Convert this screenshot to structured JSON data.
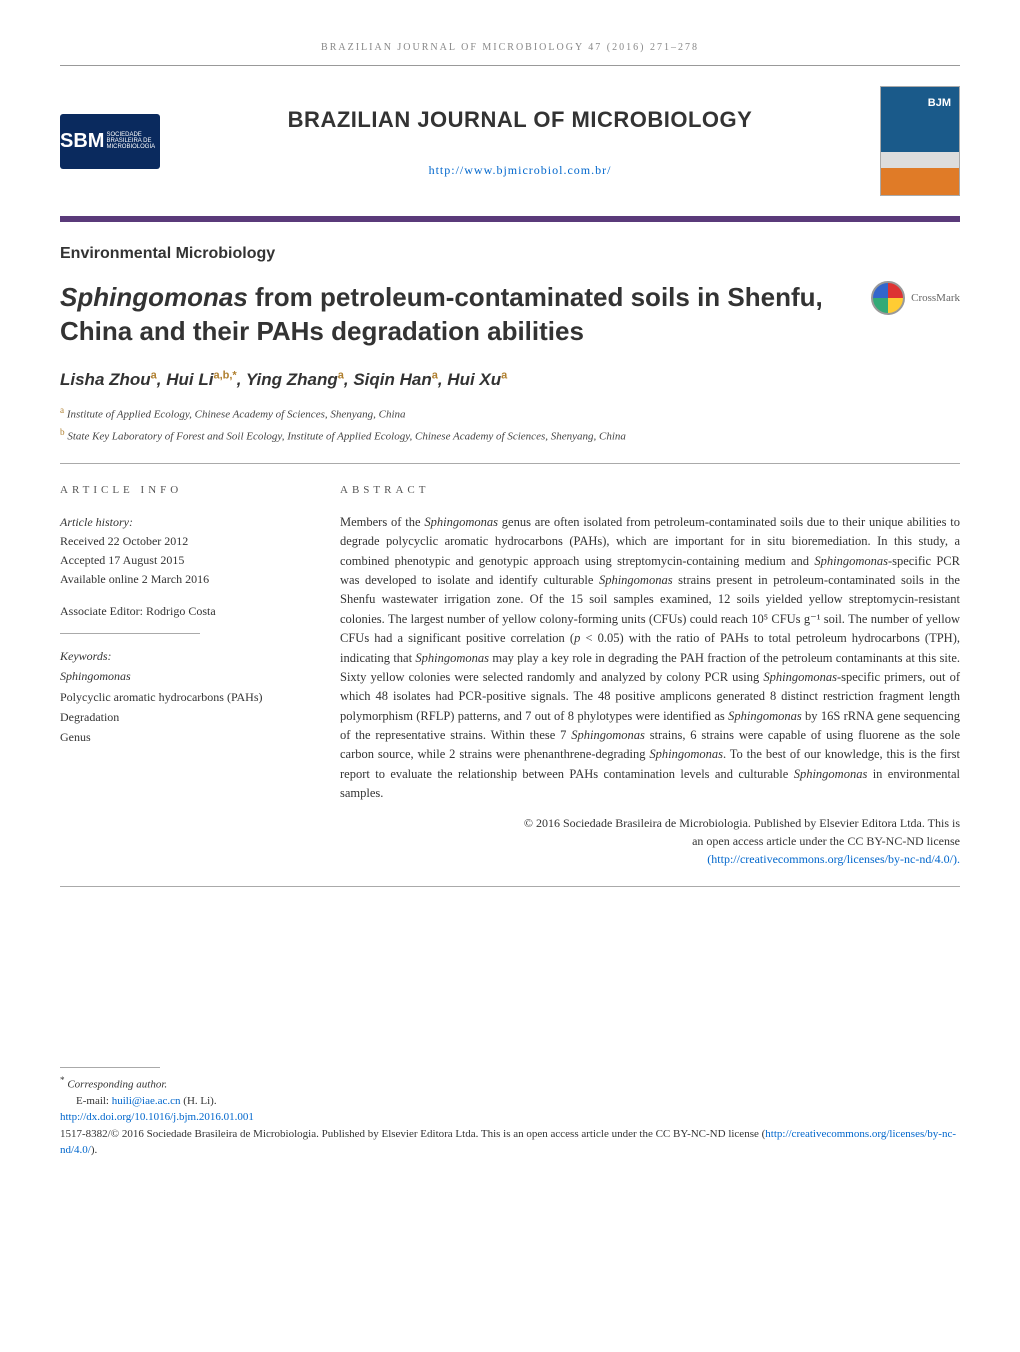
{
  "running_head": "brazilian journal of microbiology 47 (2016) 271–278",
  "masthead": {
    "sbm_main": "SBM",
    "sbm_sub": "SOCIEDADE BRASILEIRA DE MICROBIOLOGIA",
    "journal_name": "BRAZILIAN JOURNAL OF MICROBIOLOGY",
    "journal_url": "http://www.bjmicrobiol.com.br/",
    "cover_text": "BJM"
  },
  "section_label": "Environmental Microbiology",
  "title_plain": "Sphingomonas from petroleum-contaminated soils in Shenfu, China and their PAHs degradation abilities",
  "title_genus": "Sphingomonas",
  "title_rest": " from petroleum-contaminated soils in Shenfu, China and their PAHs degradation abilities",
  "crossmark_label": "CrossMark",
  "authors_html": "Lisha Zhou<sup>a</sup>, Hui Li<sup>a,b,*</sup>, Ying Zhang<sup>a</sup>, Siqin Han<sup>a</sup>, Hui Xu<sup>a</sup>",
  "affiliations": [
    {
      "sup": "a",
      "text": "Institute of Applied Ecology, Chinese Academy of Sciences, Shenyang, China"
    },
    {
      "sup": "b",
      "text": "State Key Laboratory of Forest and Soil Ecology, Institute of Applied Ecology, Chinese Academy of Sciences, Shenyang, China"
    }
  ],
  "article_info": {
    "head": "article info",
    "history_label": "Article history:",
    "received": "Received 22 October 2012",
    "accepted": "Accepted 17 August 2015",
    "online": "Available online 2 March 2016",
    "editor": "Associate Editor: Rodrigo Costa",
    "keywords_label": "Keywords:",
    "keywords": [
      "Sphingomonas",
      "Polycyclic aromatic hydrocarbons (PAHs)",
      "Degradation",
      "Genus"
    ]
  },
  "abstract": {
    "head": "abstract",
    "text": "Members of the Sphingomonas genus are often isolated from petroleum-contaminated soils due to their unique abilities to degrade polycyclic aromatic hydrocarbons (PAHs), which are important for in situ bioremediation. In this study, a combined phenotypic and genotypic approach using streptomycin-containing medium and Sphingomonas-specific PCR was developed to isolate and identify culturable Sphingomonas strains present in petroleum-contaminated soils in the Shenfu wastewater irrigation zone. Of the 15 soil samples examined, 12 soils yielded yellow streptomycin-resistant colonies. The largest number of yellow colony-forming units (CFUs) could reach 10⁵ CFUs g⁻¹ soil. The number of yellow CFUs had a significant positive correlation (p < 0.05) with the ratio of PAHs to total petroleum hydrocarbons (TPH), indicating that Sphingomonas may play a key role in degrading the PAH fraction of the petroleum contaminants at this site. Sixty yellow colonies were selected randomly and analyzed by colony PCR using Sphingomonas-specific primers, out of which 48 isolates had PCR-positive signals. The 48 positive amplicons generated 8 distinct restriction fragment length polymorphism (RFLP) patterns, and 7 out of 8 phylotypes were identified as Sphingomonas by 16S rRNA gene sequencing of the representative strains. Within these 7 Sphingomonas strains, 6 strains were capable of using fluorene as the sole carbon source, while 2 strains were phenanthrene-degrading Sphingomonas. To the best of our knowledge, this is the first report to evaluate the relationship between PAHs contamination levels and culturable Sphingomonas in environmental samples.",
    "copyright_line1": "© 2016 Sociedade Brasileira de Microbiologia. Published by Elsevier Editora Ltda. This is",
    "copyright_line2": "an open access article under the CC BY-NC-ND license",
    "license_url": "(http://creativecommons.org/licenses/by-nc-nd/4.0/)."
  },
  "footer": {
    "corr_label": "Corresponding author.",
    "email_label": "E-mail: ",
    "email": "huili@iae.ac.cn",
    "email_name": " (H. Li).",
    "doi": "http://dx.doi.org/10.1016/j.bjm.2016.01.001",
    "issn_line": "1517-8382/© 2016 Sociedade Brasileira de Microbiologia. Published by Elsevier Editora Ltda. This is an open access article under the CC BY-NC-ND license (",
    "license_url": "http://creativecommons.org/licenses/by-nc-nd/4.0/",
    "issn_tail": ")."
  },
  "colors": {
    "accent_purple": "#5a3a7a",
    "link_blue": "#0066cc",
    "sup_color": "#b08030"
  }
}
